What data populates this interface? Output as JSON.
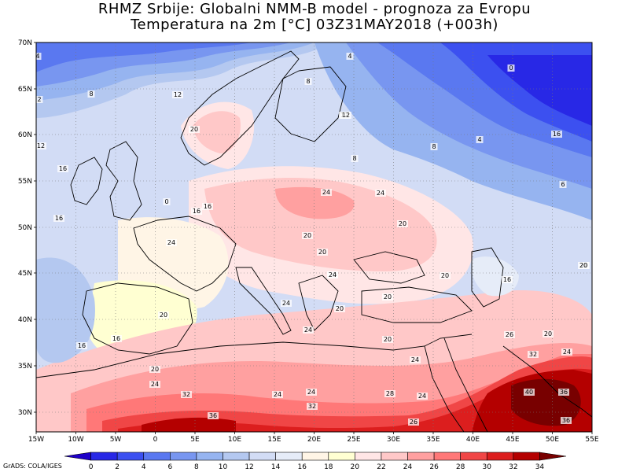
{
  "header": {
    "line1": "RHMZ Srbije: Globalni NMM-B model - prognoza za Evropu",
    "line2": "Temperatura na 2m [°C] 03Z31MAY2018 (+003h)"
  },
  "map": {
    "lat_labels": [
      "70N",
      "65N",
      "60N",
      "55N",
      "50N",
      "45N",
      "40N",
      "35N",
      "30N"
    ],
    "lon_labels": [
      "15W",
      "10W",
      "5W",
      "0",
      "5E",
      "10E",
      "15E",
      "20E",
      "25E",
      "30E",
      "35E",
      "40E",
      "45E",
      "50E",
      "55E"
    ],
    "contour_labels": [
      {
        "text": "4",
        "region": "north atlantic top-left"
      },
      {
        "text": "2",
        "region": "north atlantic left"
      },
      {
        "text": "8",
        "region": "norwegian sea"
      },
      {
        "text": "12",
        "region": "norwegian sea"
      },
      {
        "text": "12",
        "region": "north atlantic"
      },
      {
        "text": "16",
        "region": "north atlantic"
      },
      {
        "text": "16",
        "region": "ireland"
      },
      {
        "text": "20",
        "region": "norway"
      },
      {
        "text": "4",
        "region": "barents sea"
      },
      {
        "text": "8",
        "region": "northern scandinavia"
      },
      {
        "text": "12",
        "region": "finland"
      },
      {
        "text": "0",
        "region": "northern russia"
      },
      {
        "text": "4",
        "region": "northern russia"
      },
      {
        "text": "8",
        "region": "russia"
      },
      {
        "text": "8",
        "region": "baltic"
      },
      {
        "text": "6",
        "region": "russia east"
      },
      {
        "text": "12",
        "region": "russia"
      },
      {
        "text": "16",
        "region": "russia"
      },
      {
        "text": "0",
        "region": "russia east"
      },
      {
        "text": "16",
        "region": "uk"
      },
      {
        "text": "16",
        "region": "north sea"
      },
      {
        "text": "24",
        "region": "netherlands"
      },
      {
        "text": "24",
        "region": "poland"
      },
      {
        "text": "20",
        "region": "belarus"
      },
      {
        "text": "24",
        "region": "ukraine"
      },
      {
        "text": "20",
        "region": "bay of biscay"
      },
      {
        "text": "20",
        "region": "austria"
      },
      {
        "text": "20",
        "region": "hungary"
      },
      {
        "text": "24",
        "region": "hungary"
      },
      {
        "text": "20",
        "region": "balkans"
      },
      {
        "text": "20",
        "region": "black sea"
      },
      {
        "text": "20",
        "region": "caucasus"
      },
      {
        "text": "16",
        "region": "caspian"
      },
      {
        "text": "20",
        "region": "caspian east"
      },
      {
        "text": "16",
        "region": "iberia west"
      },
      {
        "text": "16",
        "region": "atlantic"
      },
      {
        "text": "20",
        "region": "spain"
      },
      {
        "text": "24",
        "region": "italy"
      },
      {
        "text": "20",
        "region": "greece"
      },
      {
        "text": "24",
        "region": "ionian"
      },
      {
        "text": "20",
        "region": "turkey"
      },
      {
        "text": "26",
        "region": "syria"
      },
      {
        "text": "32",
        "region": "iraq"
      },
      {
        "text": "24",
        "region": "iran"
      },
      {
        "text": "20",
        "region": "iran"
      },
      {
        "text": "20",
        "region": "atlantic south"
      },
      {
        "text": "24",
        "region": "morocco"
      },
      {
        "text": "24",
        "region": "libya"
      },
      {
        "text": "24",
        "region": "mediterranean"
      },
      {
        "text": "24",
        "region": "egypt"
      },
      {
        "text": "26",
        "region": "egypt"
      },
      {
        "text": "32",
        "region": "algeria"
      },
      {
        "text": "32",
        "region": "libya"
      },
      {
        "text": "36",
        "region": "algeria south"
      },
      {
        "text": "40",
        "region": "arabia"
      },
      {
        "text": "36",
        "region": "arabia"
      },
      {
        "text": "36",
        "region": "arabia south"
      },
      {
        "text": "24",
        "region": "red sea"
      },
      {
        "text": "28",
        "region": "red sea north"
      }
    ]
  },
  "colorbar": {
    "ticks": [
      "0",
      "2",
      "4",
      "6",
      "8",
      "10",
      "12",
      "14",
      "16",
      "18",
      "20",
      "22",
      "24",
      "26",
      "28",
      "30",
      "32",
      "34"
    ],
    "colors": [
      "#1e00c8",
      "#2828e6",
      "#3c50f0",
      "#5a78f0",
      "#7896f0",
      "#96b4f0",
      "#b4c8f0",
      "#d2dcf5",
      "#e6ecf8",
      "#fff5e6",
      "#ffffd2",
      "#ffe6e6",
      "#ffc8c8",
      "#ffa0a0",
      "#ff7878",
      "#f04646",
      "#dc1e1e",
      "#b40000",
      "#780000"
    ]
  },
  "credit": "GrADS: COLA/IGES"
}
